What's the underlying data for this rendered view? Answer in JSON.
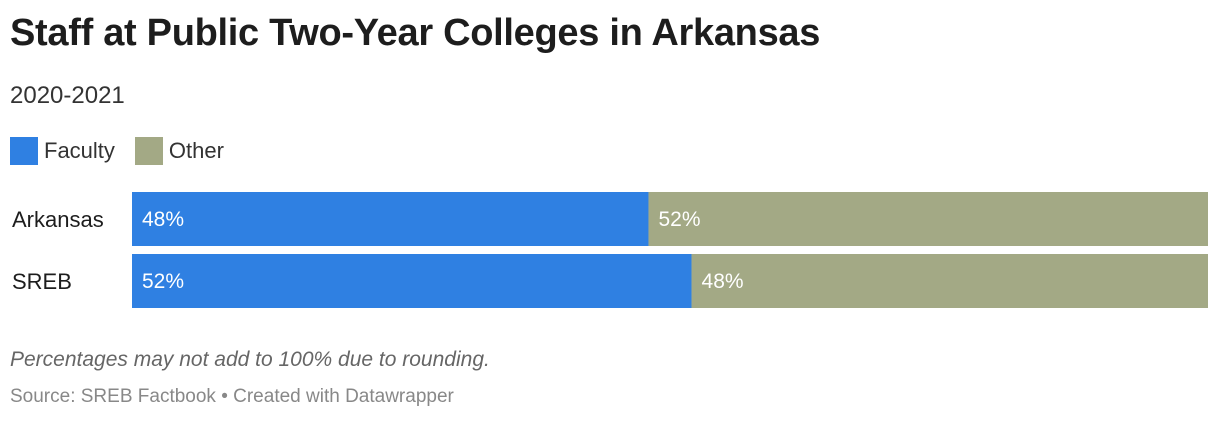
{
  "title": "Staff at Public Two-Year Colleges in Arkansas",
  "subtitle": "2020-2021",
  "note": "Percentages may not add to 100% due to rounding.",
  "source": "Source: SREB Factbook • Created with Datawrapper",
  "colors": {
    "faculty": "#2f80e2",
    "other": "#a3a985",
    "text": "#1d1d1d",
    "bar_label": "#ffffff"
  },
  "chart_data": {
    "type": "bar",
    "orientation": "horizontal",
    "stacked": true,
    "categories": [
      "Arkansas",
      "SREB"
    ],
    "series": [
      {
        "name": "Faculty",
        "color": "#2f80e2",
        "values": [
          48,
          52
        ],
        "labels": [
          "48%",
          "52%"
        ]
      },
      {
        "name": "Other",
        "color": "#a3a985",
        "values": [
          52,
          48
        ],
        "labels": [
          "52%",
          "48%"
        ]
      }
    ],
    "legend": "top-left",
    "grid": false
  }
}
